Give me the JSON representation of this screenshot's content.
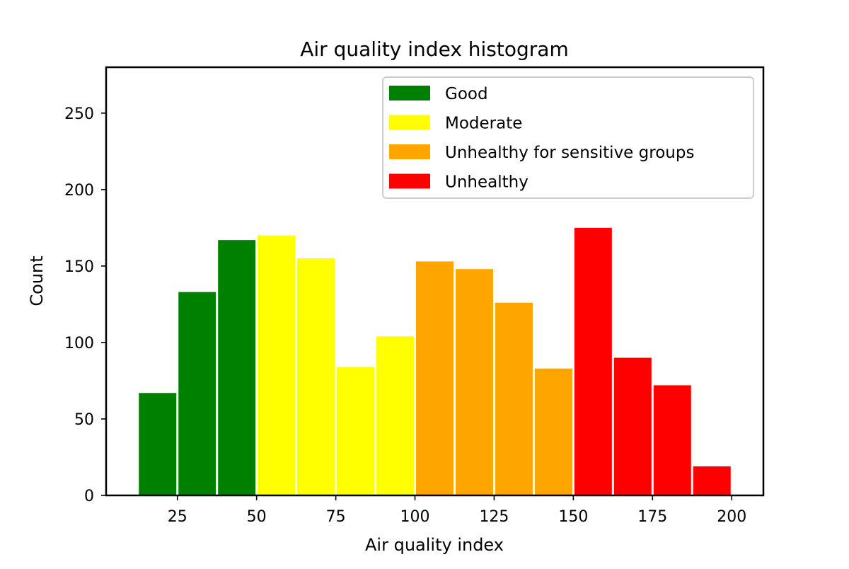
{
  "chart_data": {
    "type": "bar",
    "title": "Air quality index histogram",
    "xlabel": "Air quality index",
    "ylabel": "Count",
    "xlim": [
      2.5,
      210
    ],
    "ylim": [
      0,
      280
    ],
    "xticks": [
      25,
      50,
      75,
      100,
      125,
      150,
      175,
      200
    ],
    "yticks": [
      0,
      50,
      100,
      150,
      200,
      250
    ],
    "bin_width": 12.5,
    "grid": false,
    "legend_position": "top-right",
    "bins": [
      {
        "start": 12.5,
        "end": 25.0,
        "value": 67,
        "category": "Good"
      },
      {
        "start": 25.0,
        "end": 37.5,
        "value": 133,
        "category": "Good"
      },
      {
        "start": 37.5,
        "end": 50.0,
        "value": 167,
        "category": "Good"
      },
      {
        "start": 50.0,
        "end": 62.5,
        "value": 170,
        "category": "Moderate"
      },
      {
        "start": 62.5,
        "end": 75.0,
        "value": 155,
        "category": "Moderate"
      },
      {
        "start": 75.0,
        "end": 87.5,
        "value": 84,
        "category": "Moderate"
      },
      {
        "start": 87.5,
        "end": 100.0,
        "value": 104,
        "category": "Moderate"
      },
      {
        "start": 100.0,
        "end": 112.5,
        "value": 153,
        "category": "Unhealthy for sensitive groups"
      },
      {
        "start": 112.5,
        "end": 125.0,
        "value": 148,
        "category": "Unhealthy for sensitive groups"
      },
      {
        "start": 125.0,
        "end": 137.5,
        "value": 126,
        "category": "Unhealthy for sensitive groups"
      },
      {
        "start": 137.5,
        "end": 150.0,
        "value": 83,
        "category": "Unhealthy for sensitive groups"
      },
      {
        "start": 150.0,
        "end": 162.5,
        "value": 175,
        "category": "Unhealthy"
      },
      {
        "start": 162.5,
        "end": 175.0,
        "value": 90,
        "category": "Unhealthy"
      },
      {
        "start": 175.0,
        "end": 187.5,
        "value": 72,
        "category": "Unhealthy"
      },
      {
        "start": 187.5,
        "end": 200.0,
        "value": 19,
        "category": "Unhealthy"
      }
    ],
    "series": [
      {
        "name": "Good",
        "color": "#008000"
      },
      {
        "name": "Moderate",
        "color": "#ffff00"
      },
      {
        "name": "Unhealthy for sensitive groups",
        "color": "#ffa500"
      },
      {
        "name": "Unhealthy",
        "color": "#ff0000"
      }
    ]
  }
}
